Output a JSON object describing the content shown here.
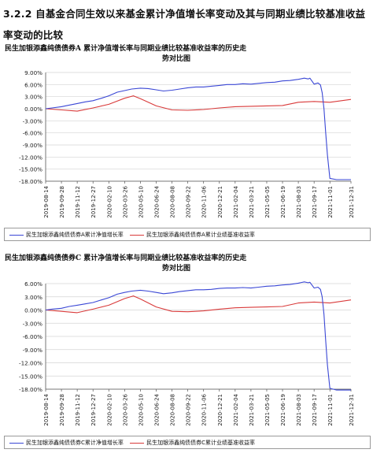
{
  "heading": "3.2.2 自基金合同生效以来基金累计净值增长率变动及其与同期业绩比较基准收益率变动的比较",
  "charts": [
    {
      "title_line1": "民生加银添鑫纯债债券A 累计净值增长率与同期业绩比较基准收益率的历史走",
      "title_line2": "势对比图",
      "legend_fund": "民生加银添鑫纯债债券A累计净值增长率",
      "legend_bench": "民生加银添鑫纯债债券A累计业绩基准收益率"
    },
    {
      "title_line1": "民生加银添鑫纯债债券C 累计净值增长率与同期业绩比较基准收益率的历史走",
      "title_line2": "势对比图",
      "legend_fund": "民生加银添鑫纯债债券C累计净值增长率",
      "legend_bench": "民生加银添鑫纯债债券C累计业绩基准收益率"
    }
  ],
  "chart_data": [
    {
      "type": "line",
      "title": "民生加银添鑫纯债债券A 累计净值增长率与同期业绩比较基准收益率的历史走势对比图",
      "x_tick_labels": [
        "2019-08-14",
        "2019-09-28",
        "2019-11-12",
        "2019-12-27",
        "2020-02-10",
        "2020-03-26",
        "2020-05-10",
        "2020-06-24",
        "2020-08-08",
        "2020-09-22",
        "2020-11-06",
        "2020-12-21",
        "2021-02-04",
        "2021-03-21",
        "2021-05-05",
        "2021-06-19",
        "2021-08-03",
        "2021-09-17",
        "2021-11-01",
        "2021-12-31"
      ],
      "y_tick_labels": [
        "9.00%",
        "6.00%",
        "3.00%",
        "0.00%",
        "-3.00%",
        "-6.00%",
        "-9.00%",
        "-12.00%",
        "-15.00%",
        "-18.00%"
      ],
      "ylim": [
        -18,
        9
      ],
      "colors": {
        "fund": "#3a47d5",
        "bench": "#d93a3a"
      },
      "series": [
        {
          "name": "民生加银添鑫纯债债券A累计净值增长率",
          "color": "#3a47d5",
          "x": [
            "2019-08-14",
            "2019-09-01",
            "2019-09-28",
            "2019-10-20",
            "2019-11-12",
            "2019-12-05",
            "2019-12-27",
            "2020-01-20",
            "2020-02-10",
            "2020-03-05",
            "2020-03-26",
            "2020-04-15",
            "2020-05-10",
            "2020-06-01",
            "2020-06-24",
            "2020-07-15",
            "2020-08-08",
            "2020-08-30",
            "2020-09-22",
            "2020-10-15",
            "2020-11-06",
            "2020-11-28",
            "2020-12-21",
            "2021-01-12",
            "2021-02-04",
            "2021-02-26",
            "2021-03-21",
            "2021-04-12",
            "2021-05-05",
            "2021-05-28",
            "2021-06-19",
            "2021-07-10",
            "2021-08-03",
            "2021-08-20",
            "2021-08-31",
            "2021-09-05",
            "2021-09-17",
            "2021-09-28",
            "2021-10-05",
            "2021-10-10",
            "2021-10-15",
            "2021-10-20",
            "2021-10-25",
            "2021-11-01",
            "2021-11-20",
            "2021-12-31"
          ],
          "y": [
            0,
            0.2,
            0.5,
            0.9,
            1.3,
            1.7,
            2.0,
            2.6,
            3.2,
            4.1,
            4.5,
            4.9,
            5.1,
            5.0,
            4.7,
            4.4,
            4.6,
            4.9,
            5.2,
            5.4,
            5.4,
            5.6,
            5.8,
            6.0,
            6.0,
            6.2,
            6.1,
            6.3,
            6.5,
            6.6,
            6.9,
            7.0,
            7.3,
            7.6,
            7.4,
            7.6,
            6.1,
            6.4,
            5.9,
            4.0,
            0,
            -6,
            -11.5,
            -17.3,
            -17.6,
            -17.6
          ]
        },
        {
          "name": "民生加银添鑫纯债债券A累计业绩基准收益率",
          "color": "#d93a3a",
          "x": [
            "2019-08-14",
            "2019-09-28",
            "2019-11-12",
            "2019-12-27",
            "2020-02-10",
            "2020-03-26",
            "2020-04-20",
            "2020-05-10",
            "2020-06-24",
            "2020-08-08",
            "2020-09-22",
            "2020-11-06",
            "2020-12-21",
            "2021-02-04",
            "2021-03-21",
            "2021-05-05",
            "2021-06-19",
            "2021-08-03",
            "2021-09-17",
            "2021-11-01",
            "2021-12-31"
          ],
          "y": [
            0,
            -0.3,
            -0.6,
            0.2,
            1.1,
            2.6,
            3.2,
            2.5,
            0.7,
            -0.3,
            -0.4,
            -0.2,
            0.2,
            0.5,
            0.6,
            0.7,
            0.8,
            1.6,
            1.8,
            1.6,
            2.3
          ]
        }
      ]
    },
    {
      "type": "line",
      "title": "民生加银添鑫纯债债券C 累计净值增长率与同期业绩比较基准收益率的历史走势对比图",
      "x_tick_labels": [
        "2019-08-14",
        "2019-09-28",
        "2019-11-12",
        "2019-12-27",
        "2020-02-10",
        "2020-03-26",
        "2020-05-10",
        "2020-06-24",
        "2020-08-08",
        "2020-09-22",
        "2020-11-06",
        "2020-12-21",
        "2021-02-04",
        "2021-03-21",
        "2021-05-05",
        "2021-06-19",
        "2021-08-03",
        "2021-09-17",
        "2021-11-01",
        "2021-12-31"
      ],
      "y_tick_labels": [
        "6.00%",
        "3.00%",
        "0.00%",
        "-3.00%",
        "-6.00%",
        "-9.00%",
        "-12.00%",
        "-15.00%",
        "-18.00%"
      ],
      "ylim": [
        -18,
        6
      ],
      "colors": {
        "fund": "#3a47d5",
        "bench": "#d93a3a"
      },
      "series": [
        {
          "name": "民生加银添鑫纯债债券C累计净值增长率",
          "color": "#3a47d5",
          "x": [
            "2019-08-14",
            "2019-09-01",
            "2019-09-28",
            "2019-10-20",
            "2019-11-12",
            "2019-12-05",
            "2019-12-27",
            "2020-01-20",
            "2020-02-10",
            "2020-03-05",
            "2020-03-26",
            "2020-04-15",
            "2020-05-10",
            "2020-06-01",
            "2020-06-24",
            "2020-07-15",
            "2020-08-08",
            "2020-08-30",
            "2020-09-22",
            "2020-10-15",
            "2020-11-06",
            "2020-11-28",
            "2020-12-21",
            "2021-01-12",
            "2021-02-04",
            "2021-02-26",
            "2021-03-21",
            "2021-04-12",
            "2021-05-05",
            "2021-05-28",
            "2021-06-19",
            "2021-07-10",
            "2021-08-03",
            "2021-08-20",
            "2021-08-31",
            "2021-09-05",
            "2021-09-17",
            "2021-09-28",
            "2021-10-05",
            "2021-10-10",
            "2021-10-15",
            "2021-10-20",
            "2021-10-25",
            "2021-11-01",
            "2021-11-20",
            "2021-12-31"
          ],
          "y": [
            0,
            0.2,
            0.4,
            0.8,
            1.1,
            1.4,
            1.7,
            2.3,
            2.8,
            3.6,
            4.0,
            4.3,
            4.5,
            4.3,
            4.0,
            3.7,
            3.9,
            4.2,
            4.4,
            4.6,
            4.6,
            4.7,
            4.9,
            5.0,
            5.0,
            5.1,
            5.0,
            5.2,
            5.4,
            5.5,
            5.7,
            5.8,
            6.1,
            6.4,
            6.2,
            6.3,
            5.0,
            5.2,
            4.7,
            3.0,
            -1,
            -7,
            -12.5,
            -17.8,
            -18.2,
            -18.2
          ]
        },
        {
          "name": "民生加银添鑫纯债债券C累计业绩基准收益率",
          "color": "#d93a3a",
          "x": [
            "2019-08-14",
            "2019-09-28",
            "2019-11-12",
            "2019-12-27",
            "2020-02-10",
            "2020-03-26",
            "2020-04-20",
            "2020-05-10",
            "2020-06-24",
            "2020-08-08",
            "2020-09-22",
            "2020-11-06",
            "2020-12-21",
            "2021-02-04",
            "2021-03-21",
            "2021-05-05",
            "2021-06-19",
            "2021-08-03",
            "2021-09-17",
            "2021-11-01",
            "2021-12-31"
          ],
          "y": [
            0,
            -0.3,
            -0.6,
            0.2,
            1.1,
            2.6,
            3.2,
            2.5,
            0.7,
            -0.3,
            -0.4,
            -0.2,
            0.2,
            0.5,
            0.6,
            0.7,
            0.8,
            1.6,
            1.8,
            1.6,
            2.3
          ]
        }
      ]
    }
  ]
}
